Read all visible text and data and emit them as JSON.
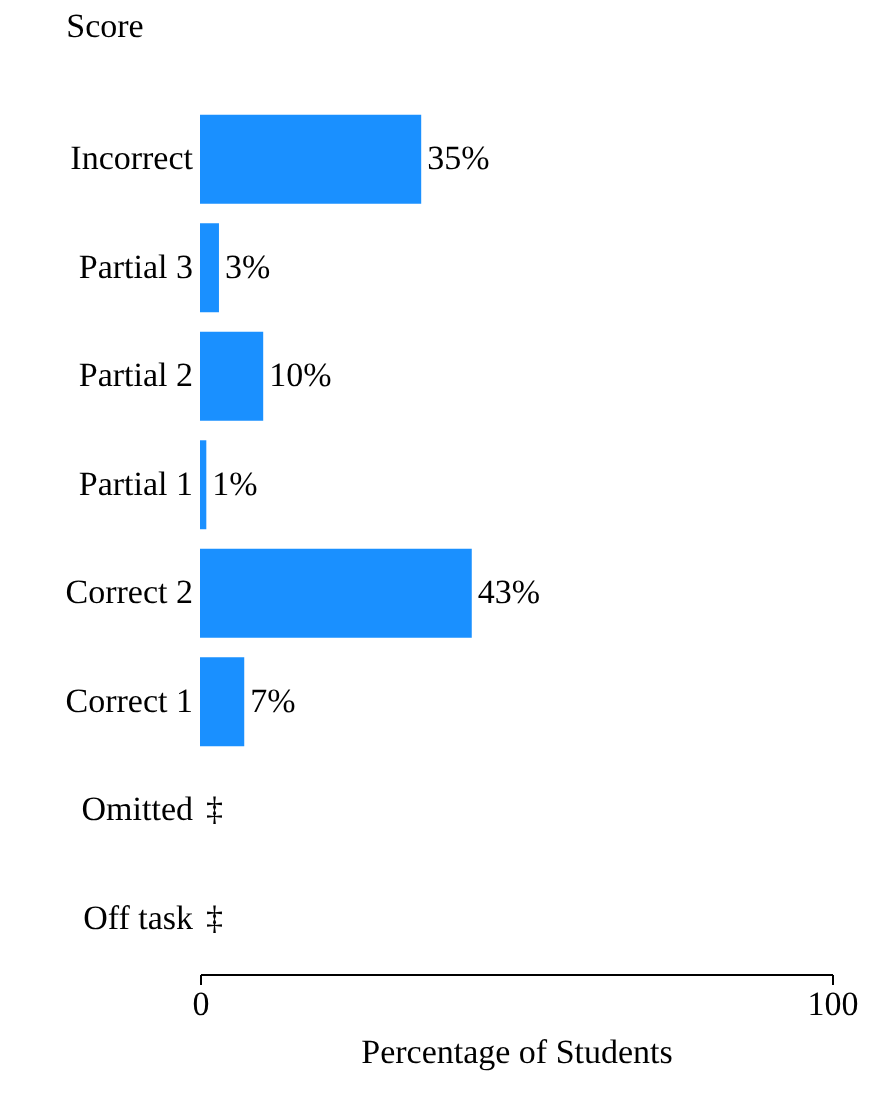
{
  "chart_data": {
    "type": "bar",
    "orientation": "horizontal",
    "ylabel": "Score",
    "xlabel": "Percentage of Students",
    "categories": [
      "Incorrect",
      "Partial 3",
      "Partial 2",
      "Partial 1",
      "Correct 2",
      "Correct 1",
      "Omitted",
      "Off task"
    ],
    "values": [
      35,
      3,
      10,
      1,
      43,
      7,
      null,
      null
    ],
    "value_labels": [
      "35%",
      "3%",
      "10%",
      "1%",
      "43%",
      "7%",
      "‡",
      "‡"
    ],
    "color": "#1a90ff",
    "xlim": [
      0,
      100
    ],
    "xticks": [
      0,
      100
    ],
    "grid": false
  }
}
